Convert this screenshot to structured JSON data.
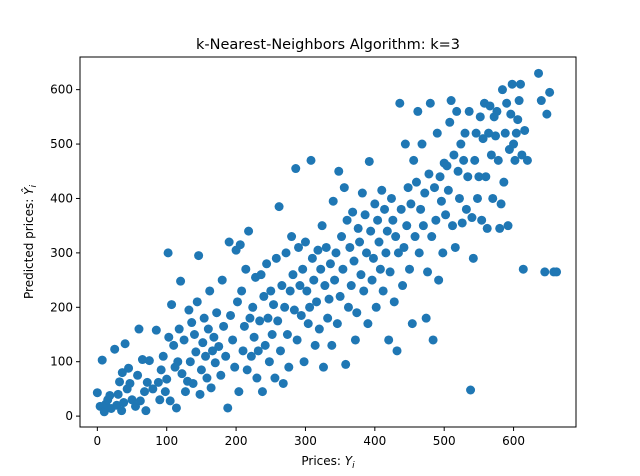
{
  "chart_data": {
    "type": "scatter",
    "title": "k-Nearest-Neighbors Algorithm: k=3",
    "xlabel_main": "Prices: ",
    "xlabel_symbol": "Y",
    "xlabel_sub": "i",
    "ylabel_main": "Predicted prices: ",
    "ylabel_symbol": "Ŷ",
    "ylabel_sub": "i",
    "xlim": [
      -25,
      690
    ],
    "ylim": [
      -20,
      660
    ],
    "xticks": [
      0,
      100,
      200,
      300,
      400,
      500,
      600
    ],
    "yticks": [
      0,
      100,
      200,
      300,
      400,
      500,
      600
    ],
    "grid": false,
    "marker_color": "#1f77b4",
    "series": [
      {
        "points": [
          [
            0,
            43
          ],
          [
            4,
            18
          ],
          [
            7,
            103
          ],
          [
            10,
            8
          ],
          [
            12,
            22
          ],
          [
            15,
            30
          ],
          [
            18,
            38
          ],
          [
            20,
            14
          ],
          [
            25,
            123
          ],
          [
            28,
            20
          ],
          [
            30,
            40
          ],
          [
            32,
            63
          ],
          [
            35,
            10
          ],
          [
            36,
            80
          ],
          [
            38,
            25
          ],
          [
            40,
            133
          ],
          [
            43,
            50
          ],
          [
            45,
            88
          ],
          [
            47,
            60
          ],
          [
            50,
            30
          ],
          [
            55,
            18
          ],
          [
            58,
            75
          ],
          [
            60,
            160
          ],
          [
            62,
            28
          ],
          [
            65,
            104
          ],
          [
            68,
            45
          ],
          [
            70,
            10
          ],
          [
            72,
            62
          ],
          [
            75,
            102
          ],
          [
            80,
            50
          ],
          [
            85,
            158
          ],
          [
            88,
            62
          ],
          [
            90,
            30
          ],
          [
            92,
            85
          ],
          [
            95,
            110
          ],
          [
            98,
            45
          ],
          [
            100,
            68
          ],
          [
            102,
            300
          ],
          [
            103,
            145
          ],
          [
            105,
            28
          ],
          [
            107,
            205
          ],
          [
            110,
            130
          ],
          [
            112,
            90
          ],
          [
            114,
            15
          ],
          [
            116,
            100
          ],
          [
            118,
            160
          ],
          [
            120,
            248
          ],
          [
            122,
            78
          ],
          [
            125,
            140
          ],
          [
            127,
            45
          ],
          [
            130,
            64
          ],
          [
            132,
            195
          ],
          [
            134,
            100
          ],
          [
            136,
            172
          ],
          [
            138,
            60
          ],
          [
            140,
            150
          ],
          [
            142,
            118
          ],
          [
            144,
            210
          ],
          [
            146,
            295
          ],
          [
            148,
            40
          ],
          [
            150,
            85
          ],
          [
            152,
            135
          ],
          [
            154,
            180
          ],
          [
            156,
            110
          ],
          [
            158,
            70
          ],
          [
            160,
            160
          ],
          [
            162,
            230
          ],
          [
            164,
            52
          ],
          [
            166,
            120
          ],
          [
            168,
            145
          ],
          [
            170,
            98
          ],
          [
            172,
            190
          ],
          [
            175,
            128
          ],
          [
            178,
            75
          ],
          [
            180,
            250
          ],
          [
            182,
            165
          ],
          [
            185,
            110
          ],
          [
            188,
            15
          ],
          [
            190,
            320
          ],
          [
            192,
            185
          ],
          [
            195,
            140
          ],
          [
            198,
            90
          ],
          [
            200,
            305
          ],
          [
            202,
            210
          ],
          [
            204,
            45
          ],
          [
            206,
            315
          ],
          [
            208,
            230
          ],
          [
            210,
            120
          ],
          [
            212,
            165
          ],
          [
            214,
            270
          ],
          [
            216,
            85
          ],
          [
            218,
            340
          ],
          [
            220,
            180
          ],
          [
            222,
            110
          ],
          [
            224,
            200
          ],
          [
            226,
            145
          ],
          [
            228,
            255
          ],
          [
            230,
            70
          ],
          [
            232,
            120
          ],
          [
            234,
            175
          ],
          [
            236,
            260
          ],
          [
            238,
            45
          ],
          [
            240,
            220
          ],
          [
            242,
            130
          ],
          [
            244,
            280
          ],
          [
            246,
            180
          ],
          [
            248,
            100
          ],
          [
            250,
            230
          ],
          [
            252,
            150
          ],
          [
            254,
            205
          ],
          [
            256,
            70
          ],
          [
            258,
            290
          ],
          [
            260,
            175
          ],
          [
            262,
            385
          ],
          [
            264,
            120
          ],
          [
            266,
            240
          ],
          [
            268,
            60
          ],
          [
            270,
            200
          ],
          [
            272,
            300
          ],
          [
            274,
            150
          ],
          [
            276,
            90
          ],
          [
            278,
            230
          ],
          [
            280,
            330
          ],
          [
            282,
            260
          ],
          [
            284,
            195
          ],
          [
            286,
            455
          ],
          [
            288,
            140
          ],
          [
            290,
            310
          ],
          [
            292,
            240
          ],
          [
            294,
            185
          ],
          [
            296,
            270
          ],
          [
            298,
            100
          ],
          [
            300,
            320
          ],
          [
            302,
            230
          ],
          [
            304,
            170
          ],
          [
            306,
            200
          ],
          [
            308,
            470
          ],
          [
            310,
            290
          ],
          [
            312,
            250
          ],
          [
            314,
            130
          ],
          [
            316,
            210
          ],
          [
            318,
            305
          ],
          [
            320,
            160
          ],
          [
            322,
            270
          ],
          [
            324,
            350
          ],
          [
            326,
            90
          ],
          [
            328,
            240
          ],
          [
            330,
            310
          ],
          [
            332,
            180
          ],
          [
            334,
            215
          ],
          [
            336,
            280
          ],
          [
            338,
            130
          ],
          [
            340,
            395
          ],
          [
            342,
            250
          ],
          [
            344,
            300
          ],
          [
            346,
            170
          ],
          [
            348,
            450
          ],
          [
            350,
            220
          ],
          [
            352,
            330
          ],
          [
            354,
            270
          ],
          [
            356,
            420
          ],
          [
            358,
            95
          ],
          [
            360,
            360
          ],
          [
            362,
            200
          ],
          [
            364,
            310
          ],
          [
            366,
            240
          ],
          [
            368,
            375
          ],
          [
            370,
            285
          ],
          [
            372,
            140
          ],
          [
            374,
            190
          ],
          [
            376,
            345
          ],
          [
            378,
            320
          ],
          [
            380,
            260
          ],
          [
            382,
            410
          ],
          [
            384,
            230
          ],
          [
            386,
            370
          ],
          [
            388,
            300
          ],
          [
            390,
            170
          ],
          [
            392,
            468
          ],
          [
            394,
            340
          ],
          [
            396,
            250
          ],
          [
            398,
            290
          ],
          [
            400,
            390
          ],
          [
            402,
            200
          ],
          [
            404,
            360
          ],
          [
            406,
            320
          ],
          [
            408,
            270
          ],
          [
            410,
            415
          ],
          [
            412,
            230
          ],
          [
            414,
            380
          ],
          [
            416,
            300
          ],
          [
            418,
            340
          ],
          [
            420,
            140
          ],
          [
            422,
            265
          ],
          [
            424,
            400
          ],
          [
            426,
            360
          ],
          [
            428,
            210
          ],
          [
            430,
            330
          ],
          [
            432,
            120
          ],
          [
            434,
            300
          ],
          [
            436,
            575
          ],
          [
            438,
            380
          ],
          [
            440,
            240
          ],
          [
            442,
            310
          ],
          [
            444,
            500
          ],
          [
            446,
            350
          ],
          [
            448,
            420
          ],
          [
            450,
            270
          ],
          [
            452,
            390
          ],
          [
            454,
            170
          ],
          [
            456,
            470
          ],
          [
            458,
            330
          ],
          [
            460,
            430
          ],
          [
            462,
            560
          ],
          [
            464,
            300
          ],
          [
            466,
            380
          ],
          [
            468,
            500
          ],
          [
            470,
            350
          ],
          [
            472,
            410
          ],
          [
            474,
            180
          ],
          [
            476,
            265
          ],
          [
            478,
            445
          ],
          [
            480,
            575
          ],
          [
            482,
            330
          ],
          [
            484,
            140
          ],
          [
            486,
            420
          ],
          [
            488,
            360
          ],
          [
            490,
            520
          ],
          [
            492,
            250
          ],
          [
            494,
            440
          ],
          [
            496,
            395
          ],
          [
            498,
            300
          ],
          [
            500,
            465
          ],
          [
            502,
            370
          ],
          [
            504,
            460
          ],
          [
            506,
            415
          ],
          [
            508,
            540
          ],
          [
            510,
            580
          ],
          [
            512,
            350
          ],
          [
            514,
            480
          ],
          [
            516,
            310
          ],
          [
            518,
            560
          ],
          [
            520,
            450
          ],
          [
            522,
            400
          ],
          [
            524,
            500
          ],
          [
            526,
            355
          ],
          [
            528,
            470
          ],
          [
            530,
            520
          ],
          [
            532,
            380
          ],
          [
            534,
            440
          ],
          [
            536,
            560
          ],
          [
            538,
            48
          ],
          [
            540,
            365
          ],
          [
            542,
            290
          ],
          [
            544,
            470
          ],
          [
            546,
            520
          ],
          [
            548,
            400
          ],
          [
            550,
            440
          ],
          [
            552,
            550
          ],
          [
            554,
            360
          ],
          [
            556,
            510
          ],
          [
            558,
            575
          ],
          [
            560,
            440
          ],
          [
            562,
            345
          ],
          [
            564,
            520
          ],
          [
            566,
            570
          ],
          [
            568,
            480
          ],
          [
            570,
            400
          ],
          [
            572,
            550
          ],
          [
            574,
            515
          ],
          [
            576,
            560
          ],
          [
            578,
            470
          ],
          [
            580,
            345
          ],
          [
            582,
            390
          ],
          [
            584,
            600
          ],
          [
            586,
            430
          ],
          [
            588,
            520
          ],
          [
            590,
            575
          ],
          [
            592,
            350
          ],
          [
            594,
            490
          ],
          [
            596,
            555
          ],
          [
            598,
            610
          ],
          [
            600,
            500
          ],
          [
            602,
            470
          ],
          [
            604,
            520
          ],
          [
            606,
            545
          ],
          [
            608,
            580
          ],
          [
            610,
            610
          ],
          [
            612,
            480
          ],
          [
            614,
            270
          ],
          [
            616,
            525
          ],
          [
            620,
            470
          ],
          [
            636,
            630
          ],
          [
            640,
            580
          ],
          [
            645,
            265
          ],
          [
            648,
            555
          ],
          [
            652,
            595
          ],
          [
            658,
            265
          ],
          [
            662,
            265
          ]
        ]
      }
    ]
  }
}
